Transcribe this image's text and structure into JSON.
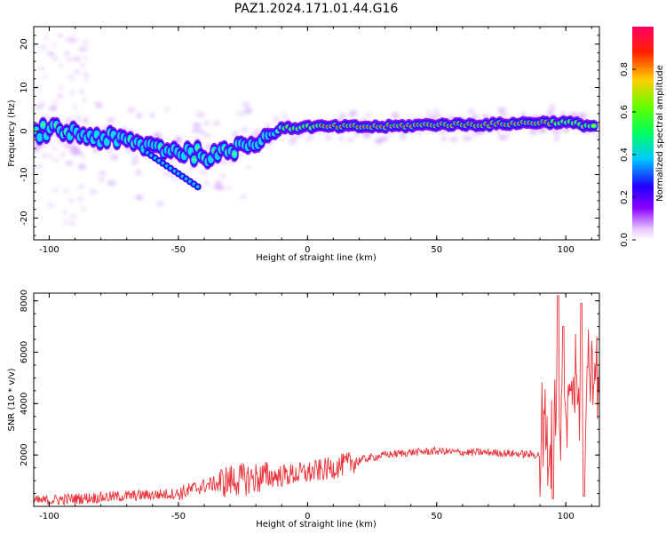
{
  "title": "PAZ1.2024.171.01.44.G16",
  "colors": {
    "snr_line": "#e8333a",
    "axis": "#000000",
    "background": "#ffffff"
  },
  "chart_data": [
    {
      "type": "heatmap",
      "xlabel": "Height of straight line (km)",
      "ylabel": "Frequency (Hz)",
      "xlim": [
        -106,
        113
      ],
      "ylim": [
        -25,
        24
      ],
      "x_ticks": [
        "-100",
        "-50",
        "0",
        "50",
        "100"
      ],
      "y_ticks": [
        "20",
        "10",
        "0",
        "-10",
        "-20"
      ],
      "colorbar": {
        "label": "Normalized spectral amplitude",
        "range": [
          0,
          1
        ],
        "ticks": [
          "0.0",
          "0.2",
          "0.4",
          "0.6",
          "0.8"
        ],
        "colormap": "gist_rainbow (white → purple → blue → cyan → green → yellow → red → magenta)"
      },
      "ridge_frequency_hz": [
        {
          "x": -104,
          "y": 0
        },
        {
          "x": -95,
          "y": 0
        },
        {
          "x": -85,
          "y": -1
        },
        {
          "x": -75,
          "y": -2
        },
        {
          "x": -65,
          "y": -3
        },
        {
          "x": -55,
          "y": -4
        },
        {
          "x": -45,
          "y": -5
        },
        {
          "x": -35,
          "y": -6
        },
        {
          "x": -25,
          "y": -3
        },
        {
          "x": -15,
          "y": -1
        },
        {
          "x": -10,
          "y": 0.5
        },
        {
          "x": 0,
          "y": 1
        },
        {
          "x": 10,
          "y": 1
        },
        {
          "x": 30,
          "y": 1
        },
        {
          "x": 50,
          "y": 1.5
        },
        {
          "x": 70,
          "y": 1.5
        },
        {
          "x": 90,
          "y": 2
        },
        {
          "x": 100,
          "y": 2
        },
        {
          "x": 112,
          "y": 1
        }
      ]
    },
    {
      "type": "line",
      "xlabel": "Height of straight line (km)",
      "ylabel": "SNR (10 * v/v)",
      "xlim": [
        -106,
        113
      ],
      "ylim": [
        0,
        8300
      ],
      "x_ticks": [
        "-100",
        "-50",
        "0",
        "50",
        "100"
      ],
      "y_ticks": [
        "2000",
        "4000",
        "6000",
        "8000"
      ],
      "series": [
        {
          "color": "#e8333a",
          "trend": [
            {
              "x": -106,
              "y": 200
            },
            {
              "x": -90,
              "y": 300
            },
            {
              "x": -70,
              "y": 400
            },
            {
              "x": -50,
              "y": 500
            },
            {
              "x": -40,
              "y": 800
            },
            {
              "x": -30,
              "y": 1000
            },
            {
              "x": -20,
              "y": 1100
            },
            {
              "x": -10,
              "y": 1200
            },
            {
              "x": 0,
              "y": 1300
            },
            {
              "x": 10,
              "y": 1500
            },
            {
              "x": 20,
              "y": 1800
            },
            {
              "x": 30,
              "y": 2000
            },
            {
              "x": 40,
              "y": 2100
            },
            {
              "x": 50,
              "y": 2150
            },
            {
              "x": 60,
              "y": 2100
            },
            {
              "x": 70,
              "y": 2100
            },
            {
              "x": 80,
              "y": 2050
            },
            {
              "x": 90,
              "y": 2000
            },
            {
              "x": 93,
              "y": 2500
            },
            {
              "x": 96,
              "y": 4000
            },
            {
              "x": 100,
              "y": 4500
            },
            {
              "x": 105,
              "y": 4500
            },
            {
              "x": 110,
              "y": 4800
            },
            {
              "x": 113,
              "y": 4900
            }
          ],
          "peaks": [
            {
              "x": 95,
              "y": 8300
            },
            {
              "x": 97,
              "y": 8200
            },
            {
              "x": 99,
              "y": 7000
            },
            {
              "x": 106,
              "y": 7900
            },
            {
              "x": 107,
              "y": 400
            },
            {
              "x": 95,
              "y": 300
            }
          ]
        }
      ]
    }
  ]
}
